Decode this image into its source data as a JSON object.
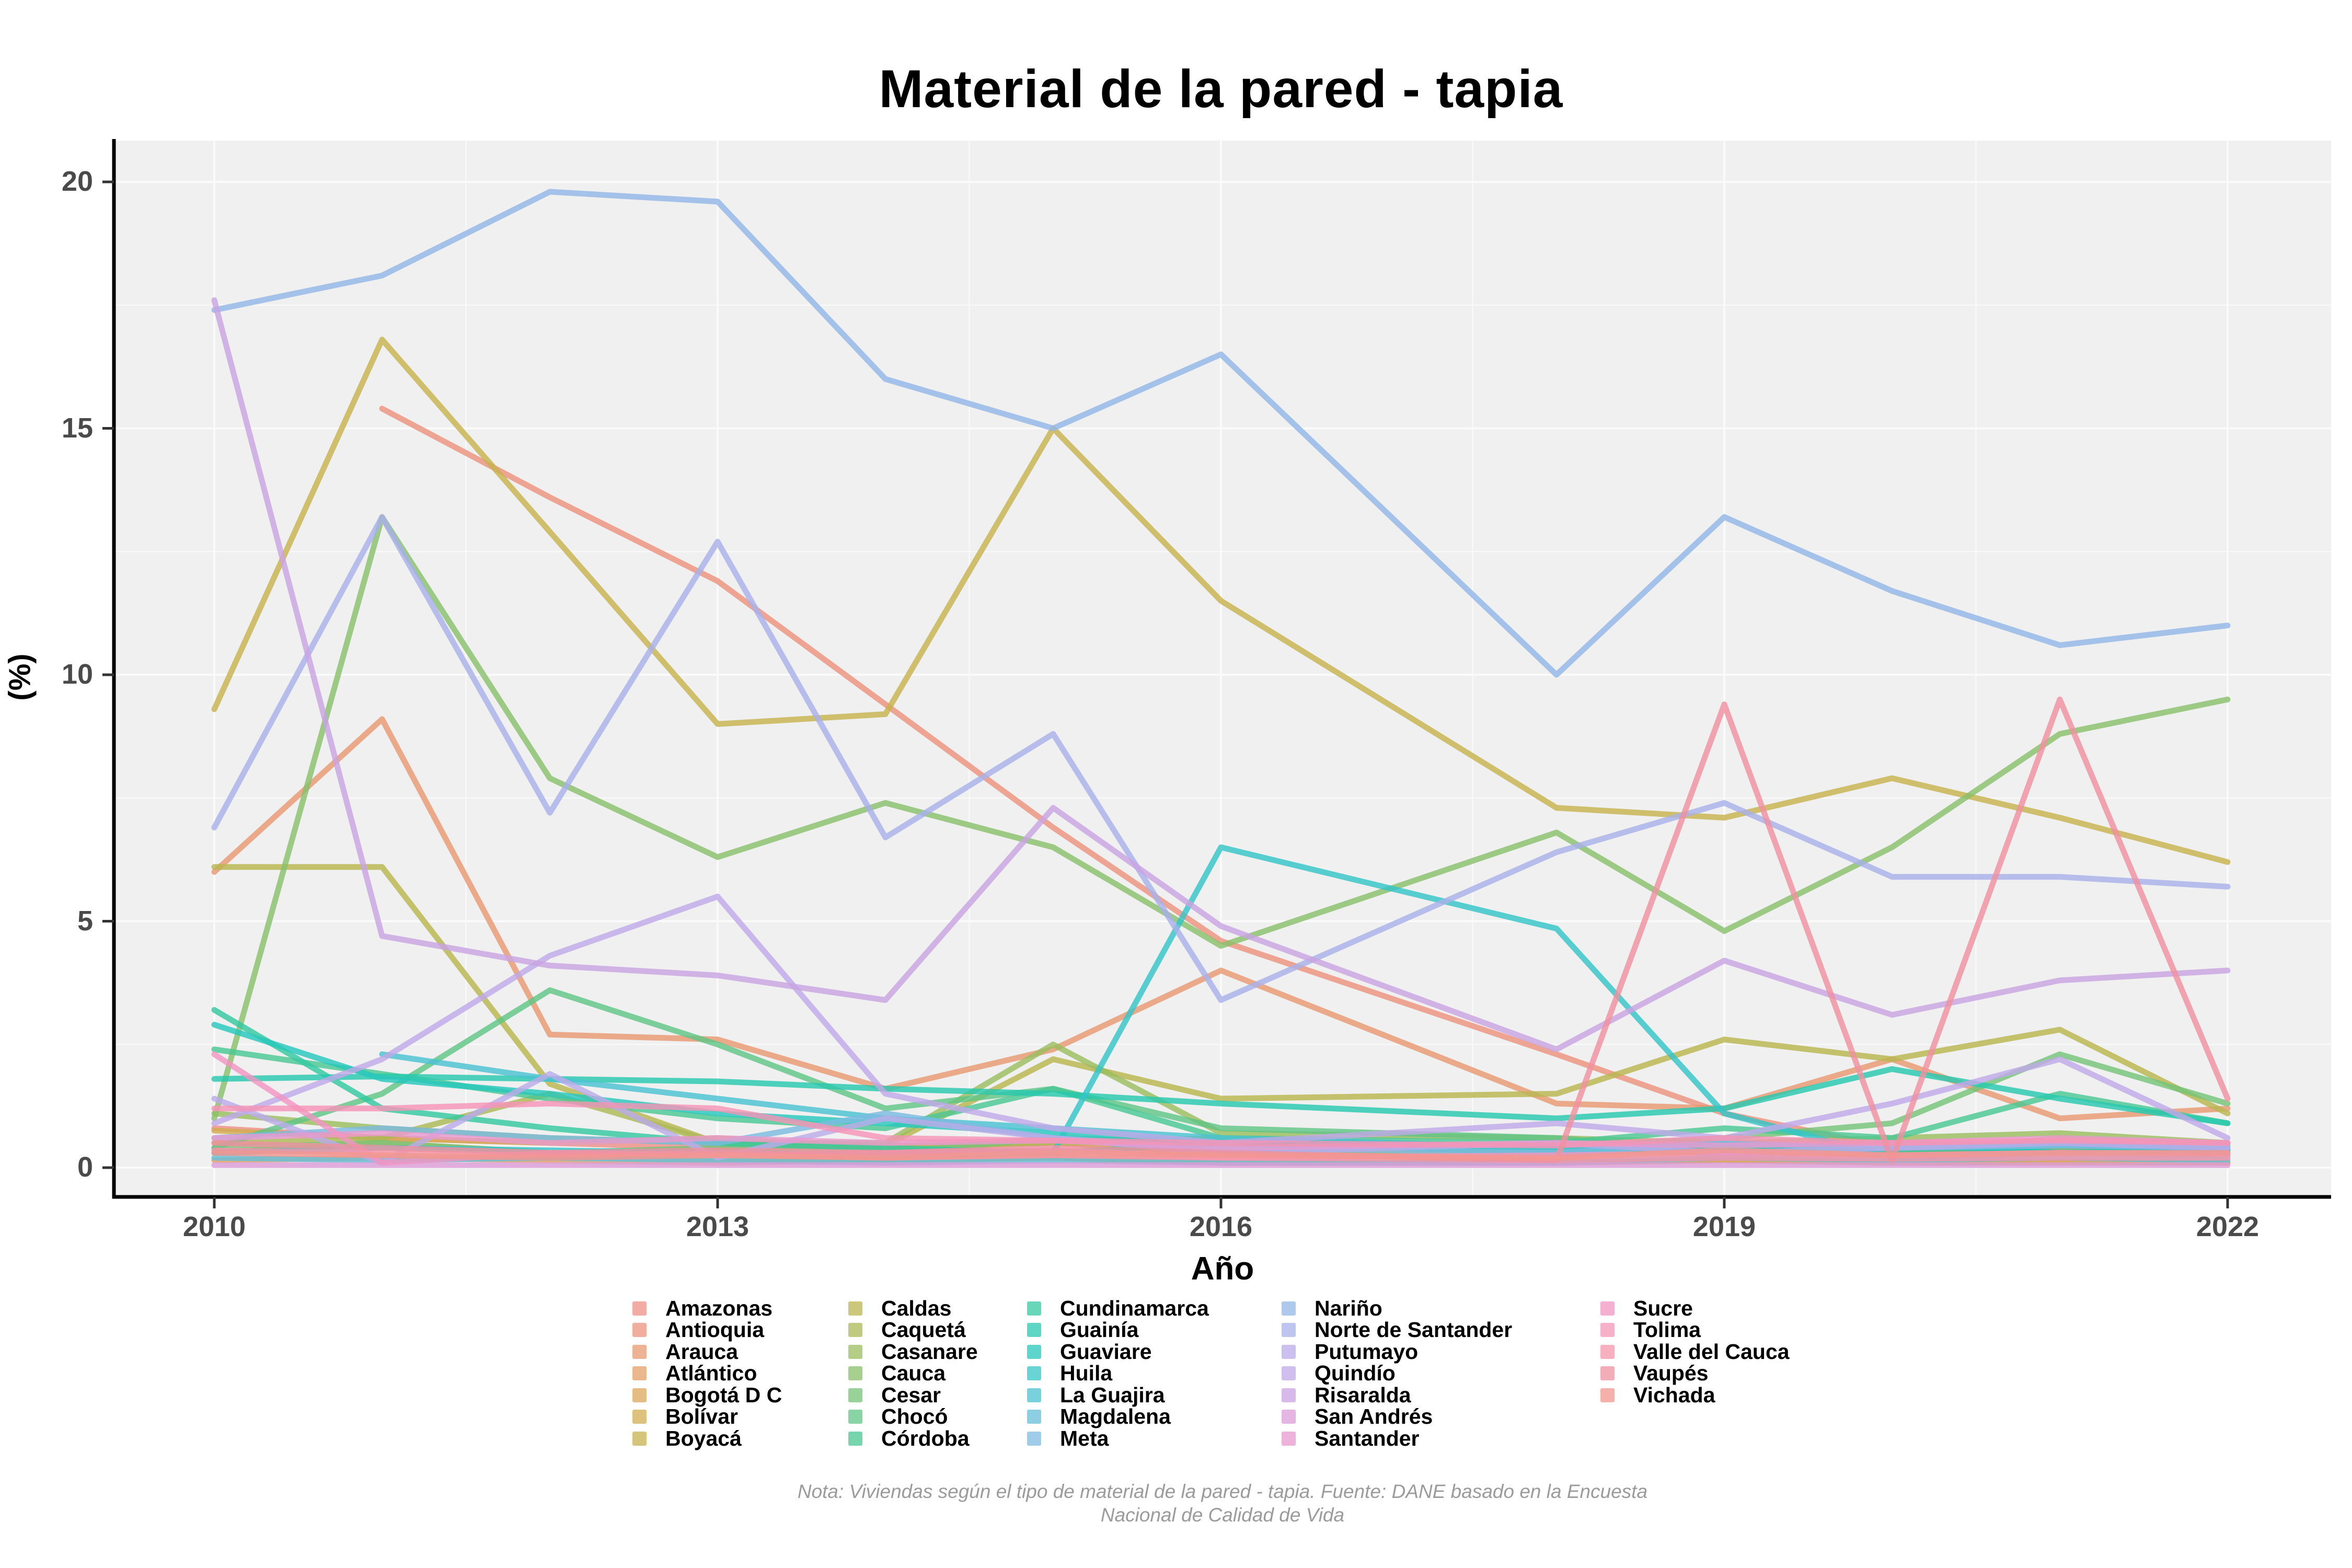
{
  "chart": {
    "title": "Material de la pared - tapia",
    "xlabel": "Año",
    "ylabel": "(%)"
  },
  "footnote": {
    "line1": "Nota: Viviendas según el tipo de material de la pared - tapia. Fuente: DANE basado en la Encuesta",
    "line2": "Nacional de Calidad de Vida"
  },
  "axes": {
    "y_ticks": [
      "0",
      "5",
      "10",
      "15",
      "20"
    ],
    "y_tick_values": [
      0,
      5,
      10,
      15,
      20
    ],
    "x_ticks": [
      "2010",
      "2013",
      "2016",
      "2019",
      "2022"
    ],
    "x_tick_values": [
      2010,
      2013,
      2016,
      2019,
      2022
    ]
  },
  "chart_data": {
    "type": "line",
    "title": "Material de la pared - tapia",
    "xlabel": "Año",
    "ylabel": "(%)",
    "xlim": [
      2010,
      2022
    ],
    "ylim": [
      0,
      20
    ],
    "grid": true,
    "legend_position": "bottom",
    "x": [
      2010,
      2011,
      2012,
      2013,
      2014,
      2015,
      2016,
      2018,
      2019,
      2020,
      2021,
      2022
    ],
    "series": [
      {
        "name": "Amazonas",
        "color": "#ee8f87",
        "values": [
          0.8,
          0.6,
          0.5,
          0.4,
          0.45,
          0.5,
          0.3,
          0.2,
          0.5,
          0.3,
          0.4,
          0.35
        ]
      },
      {
        "name": "Antioquia",
        "color": "#ec937e",
        "values": [
          null,
          15.4,
          13.6,
          11.9,
          9.4,
          6.9,
          4.6,
          2.3,
          1.1,
          0.4,
          0.35,
          0.3
        ]
      },
      {
        "name": "Arauca",
        "color": "#e89972",
        "values": [
          6.0,
          9.1,
          2.7,
          2.6,
          1.6,
          2.4,
          4.0,
          1.3,
          1.2,
          2.2,
          1.0,
          1.2
        ]
      },
      {
        "name": "Atlántico",
        "color": "#e3a065",
        "values": [
          0.15,
          0.2,
          0.15,
          0.1,
          0.15,
          0.2,
          0.1,
          0.1,
          0.15,
          0.1,
          0.12,
          0.1
        ]
      },
      {
        "name": "Bogotá D C",
        "color": "#dca65a",
        "values": [
          0.3,
          0.5,
          0.3,
          0.2,
          0.15,
          0.2,
          0.1,
          0.1,
          0.15,
          0.1,
          0.1,
          0.1
        ]
      },
      {
        "name": "Bolívar",
        "color": "#d3ac51",
        "values": [
          0.75,
          0.6,
          0.5,
          0.6,
          0.4,
          0.5,
          0.3,
          0.35,
          0.3,
          0.25,
          0.6,
          0.4
        ]
      },
      {
        "name": "Boyacá",
        "color": "#c7b24e",
        "values": [
          9.3,
          16.8,
          12.9,
          9.0,
          9.2,
          15.0,
          11.5,
          7.3,
          7.1,
          7.9,
          7.1,
          6.2
        ]
      },
      {
        "name": "Caldas",
        "color": "#bab64f",
        "values": [
          6.1,
          6.1,
          1.7,
          0.5,
          0.45,
          2.2,
          1.4,
          1.5,
          2.6,
          2.2,
          2.8,
          1.1
        ]
      },
      {
        "name": "Caquetá",
        "color": "#acba55",
        "values": [
          0.5,
          0.6,
          1.5,
          0.5,
          0.4,
          0.5,
          0.6,
          0.4,
          0.5,
          0.45,
          0.5,
          0.4
        ]
      },
      {
        "name": "Casanare",
        "color": "#9bbd5e",
        "values": [
          1.1,
          0.8,
          0.6,
          0.5,
          0.5,
          2.5,
          0.7,
          0.6,
          0.5,
          0.6,
          0.7,
          0.5
        ]
      },
      {
        "name": "Cauca",
        "color": "#89c06a",
        "values": [
          1.0,
          13.2,
          7.9,
          6.3,
          7.4,
          6.5,
          4.5,
          6.8,
          4.8,
          6.5,
          8.8,
          9.5
        ]
      },
      {
        "name": "Cesar",
        "color": "#75c377",
        "values": [
          0.4,
          0.5,
          0.3,
          0.4,
          0.3,
          0.6,
          0.5,
          0.4,
          0.6,
          0.9,
          2.3,
          1.3
        ]
      },
      {
        "name": "Chocó",
        "color": "#60c585",
        "values": [
          0.4,
          1.5,
          3.6,
          2.5,
          1.2,
          1.6,
          0.8,
          0.6,
          0.3,
          0.5,
          0.4,
          0.45
        ]
      },
      {
        "name": "Córdoba",
        "color": "#4ac793",
        "values": [
          2.4,
          1.9,
          1.4,
          1.0,
          0.8,
          1.6,
          0.6,
          0.5,
          0.8,
          0.6,
          1.5,
          0.9
        ]
      },
      {
        "name": "Cundinamarca",
        "color": "#35c8a1",
        "values": [
          3.2,
          1.2,
          0.8,
          0.5,
          0.4,
          0.3,
          0.5,
          0.4,
          0.3,
          0.35,
          0.3,
          0.4
        ]
      },
      {
        "name": "Guainía",
        "color": "#28c8af",
        "values": [
          1.8,
          1.85,
          1.8,
          1.75,
          1.6,
          1.5,
          1.3,
          1.0,
          1.2,
          2.0,
          1.4,
          0.9
        ]
      },
      {
        "name": "Guaviare",
        "color": "#27c7bc",
        "values": [
          2.9,
          1.8,
          1.5,
          1.1,
          0.9,
          0.7,
          0.5,
          0.3,
          0.4,
          0.5,
          0.3,
          0.35
        ]
      },
      {
        "name": "Huila",
        "color": "#35c5c8",
        "values": [
          0.3,
          0.4,
          0.35,
          0.3,
          0.25,
          0.3,
          6.5,
          4.85,
          1.1,
          0.2,
          0.3,
          0.25
        ]
      },
      {
        "name": "La Guajira",
        "color": "#4cc2d2",
        "values": [
          null,
          2.3,
          1.8,
          1.4,
          1.0,
          0.8,
          0.6,
          0.4,
          0.5,
          0.4,
          0.45,
          0.4
        ]
      },
      {
        "name": "Magdalena",
        "color": "#65bfda",
        "values": [
          0.2,
          0.15,
          0.2,
          0.15,
          0.1,
          0.15,
          0.1,
          0.1,
          0.2,
          0.15,
          0.2,
          0.15
        ]
      },
      {
        "name": "Meta",
        "color": "#7dbbe1",
        "values": [
          0.6,
          0.8,
          0.6,
          0.5,
          1.1,
          0.6,
          0.4,
          0.3,
          0.5,
          0.4,
          0.45,
          0.4
        ]
      },
      {
        "name": "Nariño",
        "color": "#93b7e6",
        "values": [
          17.4,
          18.1,
          19.8,
          19.6,
          16.0,
          15.0,
          16.5,
          10.0,
          13.2,
          11.7,
          10.6,
          11.0
        ]
      },
      {
        "name": "Norte de Santander",
        "color": "#a8b1e9",
        "values": [
          6.9,
          13.2,
          7.2,
          12.7,
          6.7,
          8.8,
          3.4,
          6.4,
          7.4,
          5.9,
          5.9,
          5.7
        ]
      },
      {
        "name": "Putumayo",
        "color": "#bbabe9",
        "values": [
          1.4,
          0.1,
          1.9,
          0.2,
          1.0,
          0.6,
          0.3,
          0.5,
          0.3,
          0.4,
          0.5,
          0.4
        ]
      },
      {
        "name": "Quindío",
        "color": "#bfa8e8",
        "values": [
          0.9,
          2.2,
          4.3,
          5.5,
          1.5,
          0.8,
          0.5,
          0.9,
          0.6,
          1.3,
          2.2,
          0.6
        ]
      },
      {
        "name": "Risaralda",
        "color": "#c9a3e2",
        "values": [
          17.6,
          4.7,
          4.1,
          3.9,
          3.4,
          7.3,
          4.9,
          2.4,
          4.2,
          3.1,
          3.8,
          4.0
        ]
      },
      {
        "name": "San Andrés",
        "color": "#dc9dd8",
        "values": [
          0.05,
          0.05,
          0.05,
          0.05,
          0.05,
          0.05,
          0.05,
          0.05,
          0.05,
          0.05,
          0.05,
          0.05
        ]
      },
      {
        "name": "Santander",
        "color": "#e89ace",
        "values": [
          0.6,
          0.7,
          0.5,
          0.6,
          0.5,
          0.55,
          0.4,
          0.5,
          0.45,
          0.5,
          0.6,
          0.5
        ]
      },
      {
        "name": "Sucre",
        "color": "#f295c2",
        "values": [
          2.3,
          0.1,
          0.3,
          0.25,
          0.3,
          0.35,
          0.2,
          0.25,
          0.3,
          0.25,
          0.3,
          0.28
        ]
      },
      {
        "name": "Tolima",
        "color": "#f594b6",
        "values": [
          1.2,
          1.2,
          1.3,
          1.2,
          0.6,
          0.55,
          0.5,
          0.45,
          0.6,
          0.5,
          0.55,
          0.5
        ]
      },
      {
        "name": "Valle del Cauca",
        "color": "#f694a9",
        "values": [
          0.35,
          0.3,
          0.25,
          0.3,
          0.2,
          0.25,
          0.2,
          0.15,
          0.2,
          0.18,
          0.2,
          0.2
        ]
      },
      {
        "name": "Vaupés",
        "color": "#ef91a0",
        "values": [
          0.5,
          0.4,
          0.3,
          0.35,
          0.3,
          0.4,
          0.3,
          0.15,
          9.4,
          0.15,
          9.5,
          1.4
        ]
      },
      {
        "name": "Vichada",
        "color": "#f19690",
        "values": [
          0.3,
          0.25,
          0.2,
          0.25,
          0.2,
          0.3,
          0.25,
          0.2,
          0.35,
          0.25,
          0.3,
          0.3
        ]
      }
    ]
  }
}
